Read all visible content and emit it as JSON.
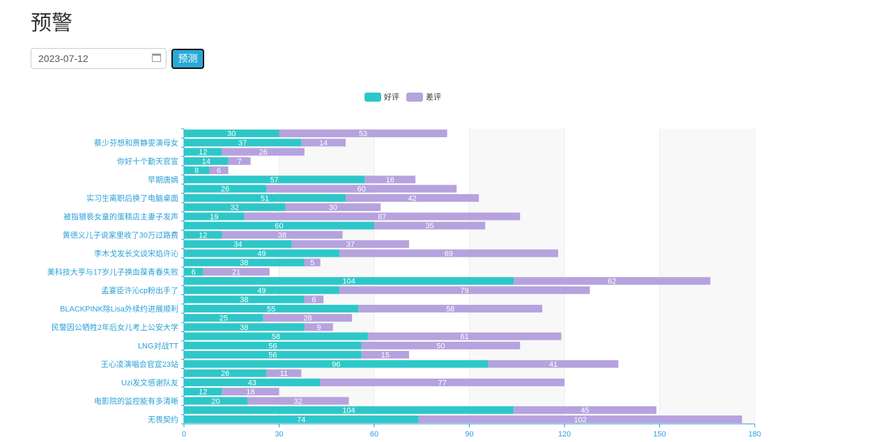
{
  "header": {
    "title": "预警"
  },
  "controls": {
    "date_value": "2023-07-12",
    "predict_label": "预测"
  },
  "chart_data": {
    "type": "bar",
    "orientation": "horizontal",
    "stacked": true,
    "legend": [
      {
        "name": "好评",
        "color": "#2ec7c9"
      },
      {
        "name": "差评",
        "color": "#b6a2de"
      }
    ],
    "legend_position": "top-center",
    "xlim": [
      0,
      180
    ],
    "xticks": [
      0,
      30,
      60,
      90,
      120,
      150,
      180
    ],
    "categories": [
      "",
      "蔡少芬想和贾静雯演母女",
      "",
      "你好十个勤天官宣",
      "",
      "早期唐嫣",
      "",
      "实习生离职后换了电脑桌面",
      "",
      "被指猥亵女童的蛋糕店主妻子发声",
      "",
      "黄德义儿子说家里收了30万过路费",
      "",
      "李木戈发长文谈宋焰许沁",
      "",
      "美科技大亨与17岁儿子换血葆青春失败",
      "",
      "孟宴臣许沁cp粉出手了",
      "",
      "BLACKPINK除Lisa外续约进展顺利",
      "",
      "民警因公牺牲2年后女儿考上公安大学",
      "",
      "LNG对战TT",
      "",
      "王心凌演唱会官宣23站",
      "",
      "Uzi发文感谢队友",
      "",
      "电影院的监控能有多清晰",
      "",
      "无畏契约"
    ],
    "series": [
      {
        "name": "好评",
        "values": [
          30,
          37,
          12,
          14,
          8,
          57,
          26,
          51,
          32,
          19,
          60,
          12,
          34,
          49,
          38,
          6,
          104,
          49,
          38,
          55,
          25,
          38,
          58,
          56,
          56,
          96,
          26,
          43,
          12,
          20,
          104,
          74
        ]
      },
      {
        "name": "差评",
        "values": [
          53,
          14,
          26,
          7,
          6,
          16,
          60,
          42,
          30,
          87,
          35,
          38,
          37,
          69,
          5,
          21,
          62,
          79,
          6,
          58,
          28,
          9,
          61,
          50,
          15,
          41,
          11,
          77,
          18,
          32,
          45,
          102
        ]
      }
    ]
  }
}
